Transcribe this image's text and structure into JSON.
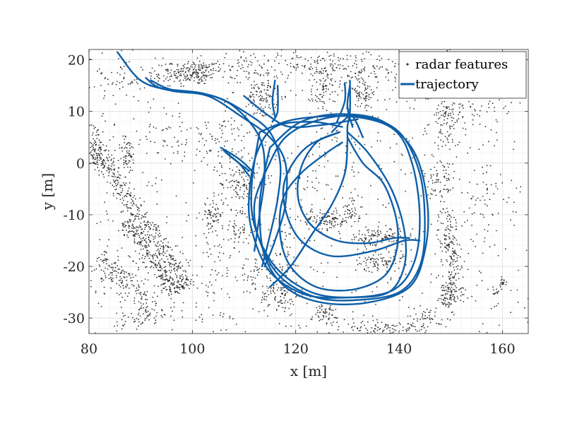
{
  "chart_data": {
    "type": "scatter",
    "title": "",
    "xlabel": "x [m]",
    "ylabel": "y [m]",
    "xlim": [
      80,
      165
    ],
    "ylim": [
      -33,
      22
    ],
    "x_ticks": [
      80,
      100,
      120,
      140,
      160
    ],
    "y_ticks": [
      -30,
      -20,
      -10,
      0,
      10,
      20
    ],
    "x_tick_labels": [
      "80",
      "100",
      "120",
      "140",
      "160"
    ],
    "y_tick_labels": [
      "-30",
      "-20",
      "-10",
      "0",
      "10",
      "20"
    ],
    "grid": true,
    "legend_position": "top-right",
    "series": [
      {
        "name": "radar features",
        "kind": "scatter",
        "color": "#333333",
        "clusters": [
          {
            "x": 100.5,
            "y": 17.5,
            "sx": 2.5,
            "sy": 1.2,
            "n": 160
          },
          {
            "x": 95,
            "y": 17,
            "sx": 2.0,
            "sy": 1.5,
            "n": 50
          },
          {
            "x": 86,
            "y": 16,
            "sx": 2.0,
            "sy": 1.5,
            "n": 40
          },
          {
            "x": 110,
            "y": 19,
            "sx": 4.0,
            "sy": 1.5,
            "n": 70
          },
          {
            "x": 124,
            "y": 19,
            "sx": 5.0,
            "sy": 1.3,
            "n": 90
          },
          {
            "x": 135,
            "y": 18,
            "sx": 5.0,
            "sy": 1.5,
            "n": 80
          },
          {
            "x": 113.5,
            "y": 13,
            "sx": 1.5,
            "sy": 2.0,
            "n": 110
          },
          {
            "x": 125.5,
            "y": 14.5,
            "sx": 1.2,
            "sy": 2.5,
            "n": 90
          },
          {
            "x": 133,
            "y": 13.5,
            "sx": 1.5,
            "sy": 1.5,
            "n": 70
          },
          {
            "x": 149,
            "y": 9,
            "sx": 1.5,
            "sy": 3.5,
            "n": 110
          },
          {
            "x": 155,
            "y": 11,
            "sx": 3.0,
            "sy": 2.5,
            "n": 50
          },
          {
            "x": 81,
            "y": 3,
            "sx": 1.0,
            "sy": 2.5,
            "n": 80
          },
          {
            "x": 87.5,
            "y": 1.5,
            "sx": 0.8,
            "sy": 1.8,
            "n": 60
          },
          {
            "x": 106,
            "y": 4,
            "sx": 3.0,
            "sy": 2.5,
            "n": 70
          },
          {
            "x": 96,
            "y": 6,
            "sx": 3.0,
            "sy": 3.0,
            "n": 40
          },
          {
            "x": 109,
            "y": -4,
            "sx": 1.8,
            "sy": 2.5,
            "n": 110
          },
          {
            "x": 104,
            "y": -10,
            "sx": 1.0,
            "sy": 1.5,
            "n": 60
          },
          {
            "x": 109,
            "y": -13,
            "sx": 1.5,
            "sy": 1.5,
            "n": 40
          },
          {
            "x": 126,
            "y": -11,
            "sx": 2.5,
            "sy": 1.0,
            "n": 110
          },
          {
            "x": 131,
            "y": -9,
            "sx": 0.8,
            "sy": 1.5,
            "n": 40
          },
          {
            "x": 136,
            "y": -14.5,
            "sx": 2.5,
            "sy": 1.0,
            "n": 100
          },
          {
            "x": 136,
            "y": -19,
            "sx": 2.5,
            "sy": 1.0,
            "n": 90
          },
          {
            "x": 149.5,
            "y": -14,
            "sx": 1.0,
            "sy": 3.0,
            "n": 110
          },
          {
            "x": 148,
            "y": -4,
            "sx": 1.5,
            "sy": 3.0,
            "n": 70
          },
          {
            "x": 156,
            "y": -8,
            "sx": 2.0,
            "sy": 4.0,
            "n": 40
          },
          {
            "x": 150.5,
            "y": -25,
            "sx": 1.2,
            "sy": 1.5,
            "n": 60
          },
          {
            "x": 145.5,
            "y": -30,
            "sx": 2.0,
            "sy": 1.0,
            "n": 50
          },
          {
            "x": 125.5,
            "y": -29.5,
            "sx": 2.0,
            "sy": 1.2,
            "n": 60
          },
          {
            "x": 137.5,
            "y": -32,
            "sx": 4.0,
            "sy": 0.7,
            "n": 90
          },
          {
            "x": 117,
            "y": -25.5,
            "sx": 2.0,
            "sy": 2.0,
            "n": 100
          },
          {
            "x": 111.5,
            "y": -21,
            "sx": 1.5,
            "sy": 1.5,
            "n": 40
          },
          {
            "x": 95,
            "y": -23,
            "sx": 3.0,
            "sy": 2.5,
            "n": 70
          },
          {
            "x": 86,
            "y": -22,
            "sx": 2.5,
            "sy": 3.0,
            "n": 60
          },
          {
            "x": 89,
            "y": -30,
            "sx": 3.0,
            "sy": 1.0,
            "n": 40
          },
          {
            "x": 128,
            "y": 0,
            "sx": 9.0,
            "sy": 6.0,
            "n": 70
          },
          {
            "x": 105,
            "y": -20,
            "sx": 3.0,
            "sy": 5.0,
            "n": 60
          },
          {
            "x": 142,
            "y": 16,
            "sx": 2.5,
            "sy": 2.5,
            "n": 40
          },
          {
            "x": 118,
            "y": -18,
            "sx": 2.0,
            "sy": 3.0,
            "n": 40
          }
        ],
        "bands": [
          {
            "x1": 81,
            "y1": 3,
            "x2": 99,
            "y2": -24,
            "w": 1.0,
            "n": 420
          },
          {
            "x1": 87,
            "y1": -11,
            "x2": 97,
            "y2": -25,
            "w": 0.9,
            "n": 200
          },
          {
            "x1": 82,
            "y1": -18,
            "x2": 94,
            "y2": -30,
            "w": 1.2,
            "n": 140
          },
          {
            "x1": 149,
            "y1": -28,
            "x2": 151,
            "y2": -17,
            "w": 0.7,
            "n": 90
          },
          {
            "x1": 158.5,
            "y1": -25.5,
            "x2": 160.5,
            "y2": -22.5,
            "w": 0.3,
            "n": 25
          }
        ],
        "noise": 650
      },
      {
        "name": "trajectory",
        "kind": "line",
        "color": "#0e5fa8",
        "paths": [
          [
            [
              85.5,
              21.5
            ],
            [
              90,
              16
            ],
            [
              96,
              14
            ],
            [
              103,
              13
            ],
            [
              109.5,
              9
            ],
            [
              115,
              5
            ],
            [
              118,
              0
            ],
            [
              118,
              -8
            ],
            [
              116,
              -15
            ],
            [
              114,
              -20
            ]
          ],
          [
            [
              91,
              16.5
            ],
            [
              94,
              14.5
            ],
            [
              102,
              13.5
            ],
            [
              108,
              11
            ],
            [
              113,
              5
            ],
            [
              114,
              -2
            ],
            [
              113,
              -10
            ],
            [
              112,
              -17
            ]
          ],
          [
            [
              92,
              16
            ],
            [
              96,
              14.2
            ],
            [
              104,
              13
            ],
            [
              110,
              10
            ],
            [
              115,
              6
            ],
            [
              117,
              0
            ],
            [
              116.5,
              -7
            ],
            [
              115,
              -14
            ],
            [
              113.5,
              -20
            ]
          ],
          [
            [
              116,
              16
            ],
            [
              115.5,
              12
            ],
            [
              116,
              9
            ]
          ],
          [
            [
              116.5,
              15
            ],
            [
              116.5,
              10
            ],
            [
              115.5,
              8
            ]
          ],
          [
            [
              130.5,
              16
            ],
            [
              130.5,
              10
            ],
            [
              130,
              7
            ],
            [
              130,
              4
            ],
            [
              129.5,
              -2
            ],
            [
              127,
              -8
            ],
            [
              123,
              -14
            ],
            [
              119,
              -20
            ],
            [
              115,
              -24
            ]
          ],
          [
            [
              129.5,
              15.5
            ],
            [
              129.5,
              12
            ],
            [
              128,
              8
            ]
          ],
          [
            [
              130.5,
              15
            ],
            [
              130,
              11
            ],
            [
              131,
              7
            ]
          ],
          [
            [
              127,
              6
            ],
            [
              129,
              8
            ],
            [
              131,
              9
            ],
            [
              133,
              5
            ]
          ],
          [
            [
              105.5,
              3
            ],
            [
              108,
              1.5
            ],
            [
              110,
              0
            ],
            [
              112,
              -2
            ]
          ],
          [
            [
              106,
              2.5
            ],
            [
              108,
              0.8
            ],
            [
              111,
              -1.5
            ]
          ],
          [
            [
              106.5,
              2
            ],
            [
              109,
              0
            ],
            [
              111,
              -2.5
            ]
          ],
          [
            [
              114,
              -2
            ],
            [
              118,
              5
            ],
            [
              125,
              8.5
            ],
            [
              133,
              9
            ],
            [
              140,
              6
            ],
            [
              144,
              -2
            ],
            [
              145,
              -12
            ],
            [
              144,
              -20
            ],
            [
              140,
              -25
            ],
            [
              132,
              -26.5
            ],
            [
              124,
              -26
            ],
            [
              117,
              -22
            ],
            [
              113,
              -15
            ],
            [
              112,
              -8
            ],
            [
              114,
              -2
            ]
          ],
          [
            [
              115,
              3
            ],
            [
              121,
              8
            ],
            [
              129,
              9.5
            ],
            [
              137,
              8
            ],
            [
              143,
              2
            ],
            [
              145.5,
              -8
            ],
            [
              145,
              -17
            ],
            [
              142,
              -24
            ],
            [
              134,
              -27
            ],
            [
              125,
              -27
            ],
            [
              118,
              -24
            ],
            [
              114,
              -18
            ],
            [
              113,
              -10
            ],
            [
              113.5,
              -4
            ],
            [
              115,
              3
            ]
          ],
          [
            [
              113,
              6
            ],
            [
              120,
              8.5
            ],
            [
              131,
              9
            ],
            [
              139,
              6.5
            ],
            [
              142.5,
              0
            ],
            [
              144,
              -10
            ],
            [
              143,
              -19
            ],
            [
              139,
              -24.5
            ],
            [
              131,
              -26
            ],
            [
              123,
              -25
            ],
            [
              116,
              -20
            ],
            [
              112,
              -12
            ],
            [
              111.5,
              -4
            ],
            [
              113,
              6
            ]
          ],
          [
            [
              128.5,
              6
            ],
            [
              122,
              3
            ],
            [
              118,
              -3
            ],
            [
              118,
              -9
            ],
            [
              121,
              -15
            ],
            [
              127,
              -18
            ],
            [
              135,
              -17
            ],
            [
              141,
              -15
            ],
            [
              144,
              -15
            ]
          ],
          [
            [
              128.5,
              6
            ],
            [
              124,
              4
            ],
            [
              121,
              -1
            ],
            [
              120.5,
              -7
            ],
            [
              123,
              -12
            ],
            [
              128,
              -15
            ],
            [
              134,
              -15.5
            ],
            [
              139,
              -14.5
            ],
            [
              142,
              -14.5
            ]
          ],
          [
            [
              130,
              5
            ],
            [
              133,
              0
            ],
            [
              137,
              -4
            ],
            [
              139.5,
              -11
            ],
            [
              139.5,
              -17
            ],
            [
              137,
              -22
            ],
            [
              131,
              -24.5
            ],
            [
              124,
              -24
            ],
            [
              119,
              -20
            ],
            [
              117,
              -14
            ],
            [
              117.5,
              -7
            ],
            [
              121,
              -2
            ],
            [
              126,
              2
            ],
            [
              129,
              4
            ]
          ],
          [
            [
              130,
              6
            ],
            [
              134,
              2
            ],
            [
              138.5,
              -5
            ],
            [
              141,
              -13
            ],
            [
              141,
              -20
            ],
            [
              138,
              -25
            ],
            [
              131,
              -26
            ],
            [
              122,
              -25.5
            ],
            [
              115,
              -21
            ],
            [
              111.5,
              -13
            ],
            [
              111,
              -6
            ],
            [
              112.5,
              2
            ],
            [
              116,
              7
            ],
            [
              123,
              8
            ],
            [
              129,
              7
            ]
          ],
          [
            [
              110,
              13
            ],
            [
              115,
              9
            ],
            [
              119,
              7
            ],
            [
              126,
              7.5
            ],
            [
              132,
              8.5
            ]
          ]
        ]
      }
    ]
  }
}
